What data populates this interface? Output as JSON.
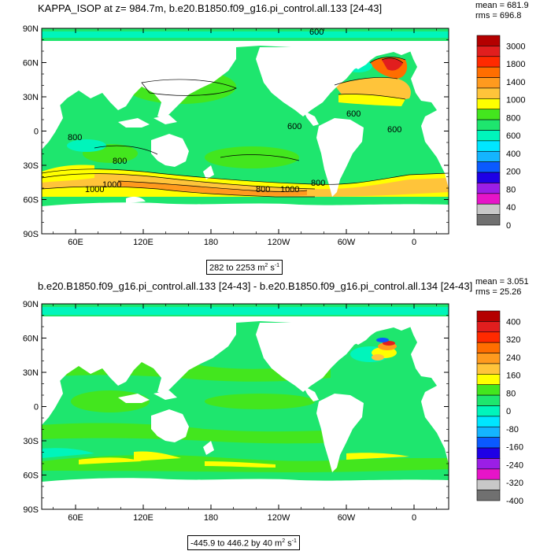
{
  "chart_data": [
    {
      "type": "contour-map",
      "title": "KAPPA_ISOP at z= 984.7m, b.e20.B1850.f09_g16.pi_control.all.133 [24-43]",
      "mean_label": "mean = 681.9",
      "rms_label": "rms = 696.8",
      "range_text": "282 to 2253",
      "units_text": "m",
      "units_exp": "2",
      "units_tail": "s",
      "units_tail_exp": "-1",
      "lat_ticks": [
        "90N",
        "60N",
        "30N",
        "0",
        "30S",
        "60S",
        "90S"
      ],
      "lon_ticks": [
        "60E",
        "120E",
        "180",
        "120W",
        "60W",
        "0"
      ],
      "colorbar": {
        "labels": [
          "3000",
          "1800",
          "1400",
          "1000",
          "800",
          "600",
          "400",
          "200",
          "80",
          "40",
          "0"
        ],
        "colors": [
          "#b40000",
          "#e11e1e",
          "#ff2a00",
          "#ff6e00",
          "#ff9a1e",
          "#ffc43a",
          "#ffff00",
          "#43e61e",
          "#1ee66e",
          "#00f5bb",
          "#00e6ff",
          "#14b4ff",
          "#0a5aff",
          "#1e00e6",
          "#9b1ee6",
          "#e614c8",
          "#c8c8c8",
          "#707070"
        ]
      },
      "contour_labels": [
        "800",
        "600",
        "600",
        "600",
        "800",
        "800",
        "1000",
        "1000",
        "800",
        "1000",
        "600"
      ]
    },
    {
      "type": "contour-map",
      "title": "b.e20.B1850.f09_g16.pi_control.all.133 [24-43] - b.e20.B1850.f09_g16.pi_control.all.134 [24-43]",
      "mean_label": "mean = 3.051",
      "rms_label": "rms = 25.26",
      "range_text": "-445.9 to 446.2 by 40",
      "units_text": "m",
      "units_exp": "2",
      "units_tail": "s",
      "units_tail_exp": "-1",
      "lat_ticks": [
        "90N",
        "60N",
        "30N",
        "0",
        "30S",
        "60S",
        "90S"
      ],
      "lon_ticks": [
        "60E",
        "120E",
        "180",
        "120W",
        "60W",
        "0"
      ],
      "colorbar": {
        "labels": [
          "400",
          "320",
          "240",
          "160",
          "80",
          "0",
          "-80",
          "-160",
          "-240",
          "-320",
          "-400"
        ],
        "colors": [
          "#b40000",
          "#e11e1e",
          "#ff2a00",
          "#ff6e00",
          "#ff9a1e",
          "#ffc43a",
          "#ffff00",
          "#43e61e",
          "#1ee66e",
          "#00f5bb",
          "#00e6ff",
          "#14b4ff",
          "#0a5aff",
          "#1e00e6",
          "#9b1ee6",
          "#e614c8",
          "#c8c8c8",
          "#707070"
        ]
      }
    }
  ]
}
